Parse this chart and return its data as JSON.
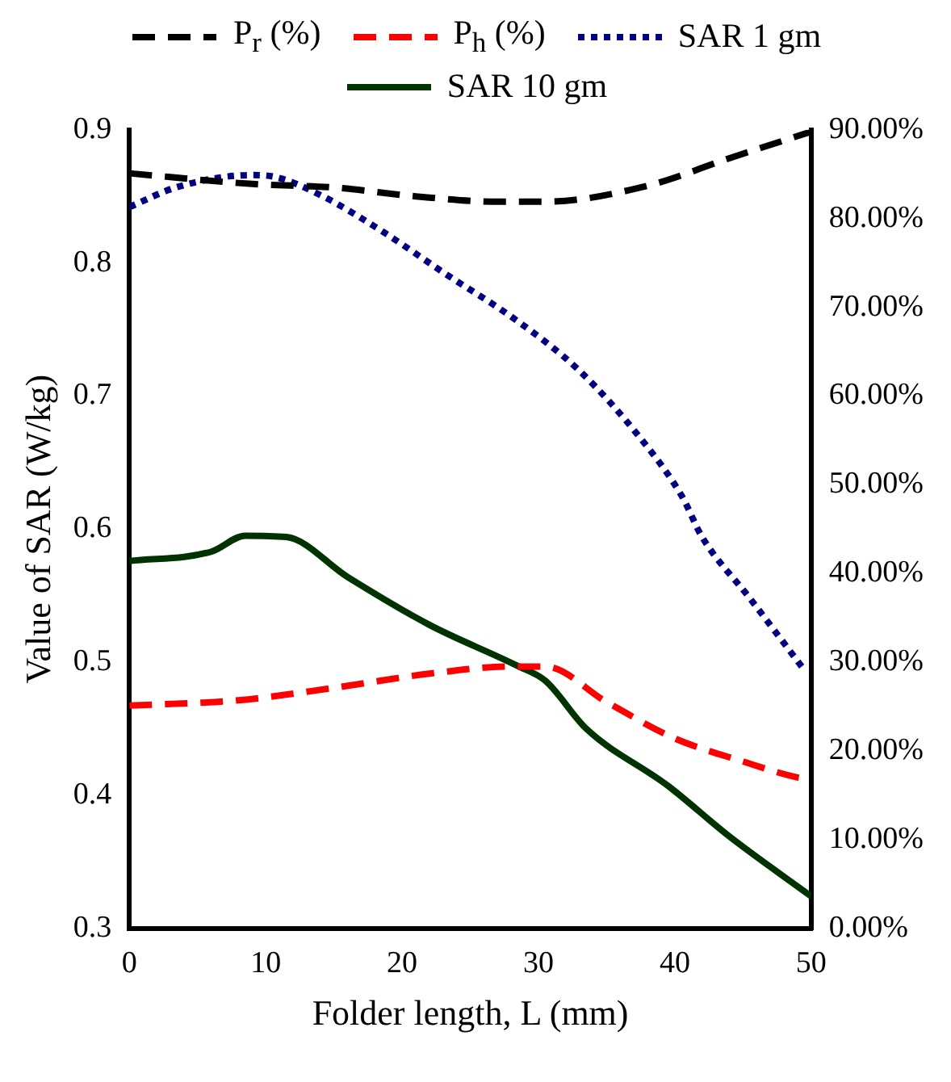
{
  "chart_data": {
    "type": "line",
    "xlabel": "Folder length, L (mm)",
    "ylabel": "Value of SAR (W/kg)",
    "legend": "top",
    "grid": false,
    "marker": "none",
    "xlim": [
      0,
      50
    ],
    "xticks": [
      0,
      10,
      20,
      30,
      40,
      50
    ],
    "ylim": [
      0.3,
      0.9
    ],
    "yticks": [
      0.3,
      0.4,
      0.5,
      0.6,
      0.7,
      0.8,
      0.9
    ],
    "y2lim": [
      0,
      90
    ],
    "y2ticks": [
      {
        "value": 0,
        "label": "0.00%"
      },
      {
        "value": 10,
        "label": "10.00%"
      },
      {
        "value": 20,
        "label": "20.00%"
      },
      {
        "value": 30,
        "label": "30.00%"
      },
      {
        "value": 40,
        "label": "40.00%"
      },
      {
        "value": 50,
        "label": "50.00%"
      },
      {
        "value": 60,
        "label": "60.00%"
      },
      {
        "value": 70,
        "label": "70.00%"
      },
      {
        "value": 80,
        "label": "80.00%"
      },
      {
        "value": 90,
        "label": "90.00%"
      }
    ],
    "series": [
      {
        "name": "P$_{r}$ (%)",
        "color": "#000000",
        "axis": "y2",
        "line_style": "dashed",
        "x": [
          0,
          9,
          15,
          21,
          27,
          30.5,
          38,
          44,
          50
        ],
        "values": [
          85.1,
          83.9,
          83.5,
          82.5,
          81.9,
          81.9,
          83.7,
          86.8,
          89.8
        ]
      },
      {
        "name": "P$_{h}$ (%)",
        "color": "#ff0000",
        "axis": "y2",
        "line_style": "dashed",
        "x": [
          0,
          8,
          15,
          22,
          28,
          30.5,
          35,
          40,
          45,
          49,
          50
        ],
        "values": [
          25.1,
          25.7,
          27.1,
          28.7,
          29.5,
          29.5,
          25.5,
          21.4,
          18.8,
          17.0,
          16.8
        ]
      },
      {
        "name": "SAR 1 gm",
        "color": "#000080",
        "line_style": "dotted",
        "x": [
          0,
          3.5,
          9,
          10.5,
          14,
          18.5,
          23,
          28.5,
          33,
          37.5,
          40.5,
          42,
          45.5,
          49.5
        ],
        "values": [
          0.842,
          0.857,
          0.866,
          0.865,
          0.851,
          0.824,
          0.793,
          0.756,
          0.719,
          0.668,
          0.625,
          0.594,
          0.548,
          0.494
        ]
      },
      {
        "name": "SAR 10 gm",
        "color": "#003300",
        "line_style": "solid",
        "x": [
          0,
          6,
          8.5,
          11.5,
          16,
          22,
          28.5,
          30.5,
          33.5,
          39.5,
          44,
          50
        ],
        "values": [
          0.576,
          0.583,
          0.595,
          0.594,
          0.564,
          0.528,
          0.497,
          0.486,
          0.45,
          0.407,
          0.369,
          0.324
        ]
      }
    ]
  }
}
